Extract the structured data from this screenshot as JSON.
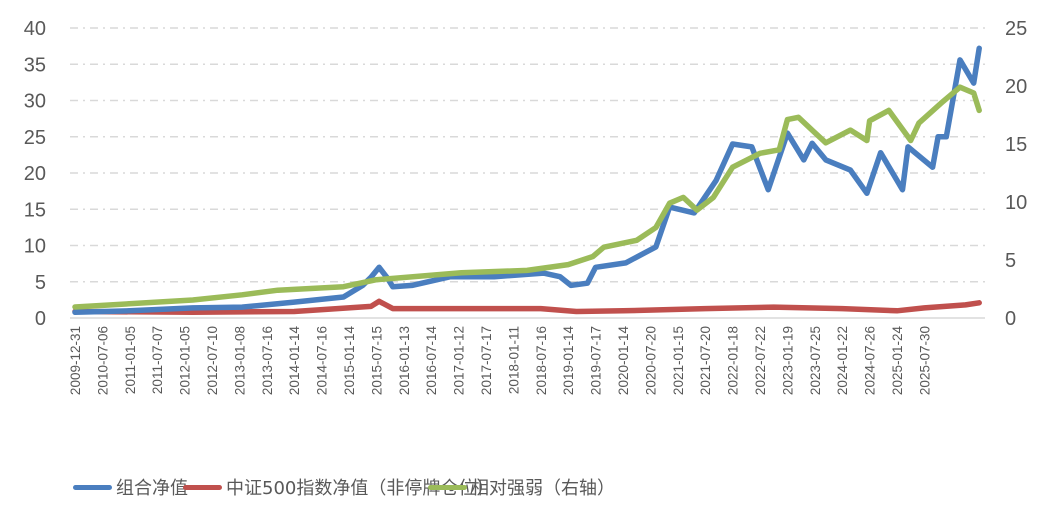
{
  "chart_data": {
    "type": "line",
    "title": "",
    "categories": [
      "2009-12-31",
      "2010-07-06",
      "2011-01-05",
      "2011-07-07",
      "2012-01-05",
      "2012-07-10",
      "2013-01-08",
      "2013-07-16",
      "2014-01-14",
      "2014-07-16",
      "2015-01-14",
      "2015-07-15",
      "2016-01-13",
      "2016-07-14",
      "2017-01-12",
      "2017-07-17",
      "2018-01-11",
      "2018-07-16",
      "2019-01-14",
      "2019-07-17",
      "2020-01-14",
      "2020-07-20",
      "2021-01-15",
      "2021-07-20",
      "2022-01-18",
      "2022-07-22",
      "2023-01-19",
      "2023-07-25",
      "2024-01-22",
      "2024-07-26",
      "2025-01-24",
      "2025-07-30"
    ],
    "x_unit": "category index (fractional)",
    "y_left": {
      "ylim": [
        0,
        40
      ],
      "ticks": [
        0,
        5,
        10,
        15,
        20,
        25,
        30,
        35,
        40
      ]
    },
    "y_right": {
      "ylim": [
        0,
        25
      ],
      "ticks": [
        0,
        5,
        10,
        15,
        20,
        25
      ]
    },
    "grid": true,
    "legend_placement": "bottom",
    "series": [
      {
        "name": "组合净值",
        "color": "#4a7ebf",
        "axis": "left",
        "points": [
          [
            0,
            0.8
          ],
          [
            2,
            1.0
          ],
          [
            4.3,
            1.4
          ],
          [
            6.1,
            1.5
          ],
          [
            8,
            2.2
          ],
          [
            9.8,
            2.9
          ],
          [
            10.5,
            4.5
          ],
          [
            10.8,
            5.6
          ],
          [
            11.1,
            7.0
          ],
          [
            11.4,
            5.5
          ],
          [
            11.6,
            4.3
          ],
          [
            12.3,
            4.5
          ],
          [
            13.7,
            5.7
          ],
          [
            15.3,
            5.7
          ],
          [
            17.1,
            6.2
          ],
          [
            17.7,
            5.7
          ],
          [
            18.1,
            4.5
          ],
          [
            18.7,
            4.8
          ],
          [
            19.0,
            7.0
          ],
          [
            20.1,
            7.6
          ],
          [
            21.2,
            9.8
          ],
          [
            21.7,
            15.3
          ],
          [
            22.6,
            14.5
          ],
          [
            23.4,
            19
          ],
          [
            24.0,
            24
          ],
          [
            24.7,
            23.6
          ],
          [
            25.3,
            17.7
          ],
          [
            26.0,
            25.5
          ],
          [
            26.6,
            21.8
          ],
          [
            26.9,
            24.1
          ],
          [
            27.4,
            21.8
          ],
          [
            28.3,
            20.4
          ],
          [
            28.9,
            17.2
          ],
          [
            29.4,
            22.8
          ],
          [
            30.2,
            17.7
          ],
          [
            30.4,
            23.6
          ],
          [
            31.3,
            20.8
          ],
          [
            31.5,
            25
          ],
          [
            31.8,
            25
          ],
          [
            32.3,
            35.6
          ],
          [
            32.8,
            32.4
          ],
          [
            33.0,
            37.2
          ]
        ]
      },
      {
        "name": "中证500指数净值（非停牌仓位）",
        "color": "#c0504d",
        "axis": "left",
        "points": [
          [
            0,
            0.9
          ],
          [
            4.3,
            0.8
          ],
          [
            8,
            0.9
          ],
          [
            10.8,
            1.6
          ],
          [
            11.1,
            2.3
          ],
          [
            11.6,
            1.3
          ],
          [
            14,
            1.3
          ],
          [
            17,
            1.3
          ],
          [
            18.3,
            0.9
          ],
          [
            20,
            1.0
          ],
          [
            23,
            1.3
          ],
          [
            25.5,
            1.5
          ],
          [
            28,
            1.3
          ],
          [
            30,
            1.0
          ],
          [
            31,
            1.4
          ],
          [
            32.5,
            1.8
          ],
          [
            33,
            2.1
          ]
        ]
      },
      {
        "name": "相对强弱（右轴）",
        "color": "#9bbb59",
        "axis": "right",
        "points": [
          [
            0,
            0.95
          ],
          [
            4.3,
            1.55
          ],
          [
            6.1,
            2.0
          ],
          [
            7.4,
            2.4
          ],
          [
            9.8,
            2.7
          ],
          [
            11.0,
            3.3
          ],
          [
            14.1,
            3.9
          ],
          [
            16.5,
            4.1
          ],
          [
            18.0,
            4.6
          ],
          [
            18.9,
            5.3
          ],
          [
            19.3,
            6.1
          ],
          [
            20.5,
            6.7
          ],
          [
            21.2,
            7.8
          ],
          [
            21.7,
            9.9
          ],
          [
            22.2,
            10.4
          ],
          [
            22.7,
            9.3
          ],
          [
            23.3,
            10.4
          ],
          [
            24.0,
            13.0
          ],
          [
            25.0,
            14.2
          ],
          [
            25.7,
            14.5
          ],
          [
            26.0,
            17.1
          ],
          [
            26.4,
            17.3
          ],
          [
            26.9,
            16.2
          ],
          [
            27.4,
            15.1
          ],
          [
            28.3,
            16.2
          ],
          [
            28.9,
            15.3
          ],
          [
            29.0,
            17.0
          ],
          [
            29.7,
            17.9
          ],
          [
            30.5,
            15.3
          ],
          [
            30.8,
            16.8
          ],
          [
            31.6,
            18.5
          ],
          [
            32.3,
            19.9
          ],
          [
            32.8,
            19.4
          ],
          [
            33.0,
            17.9
          ]
        ]
      }
    ]
  }
}
